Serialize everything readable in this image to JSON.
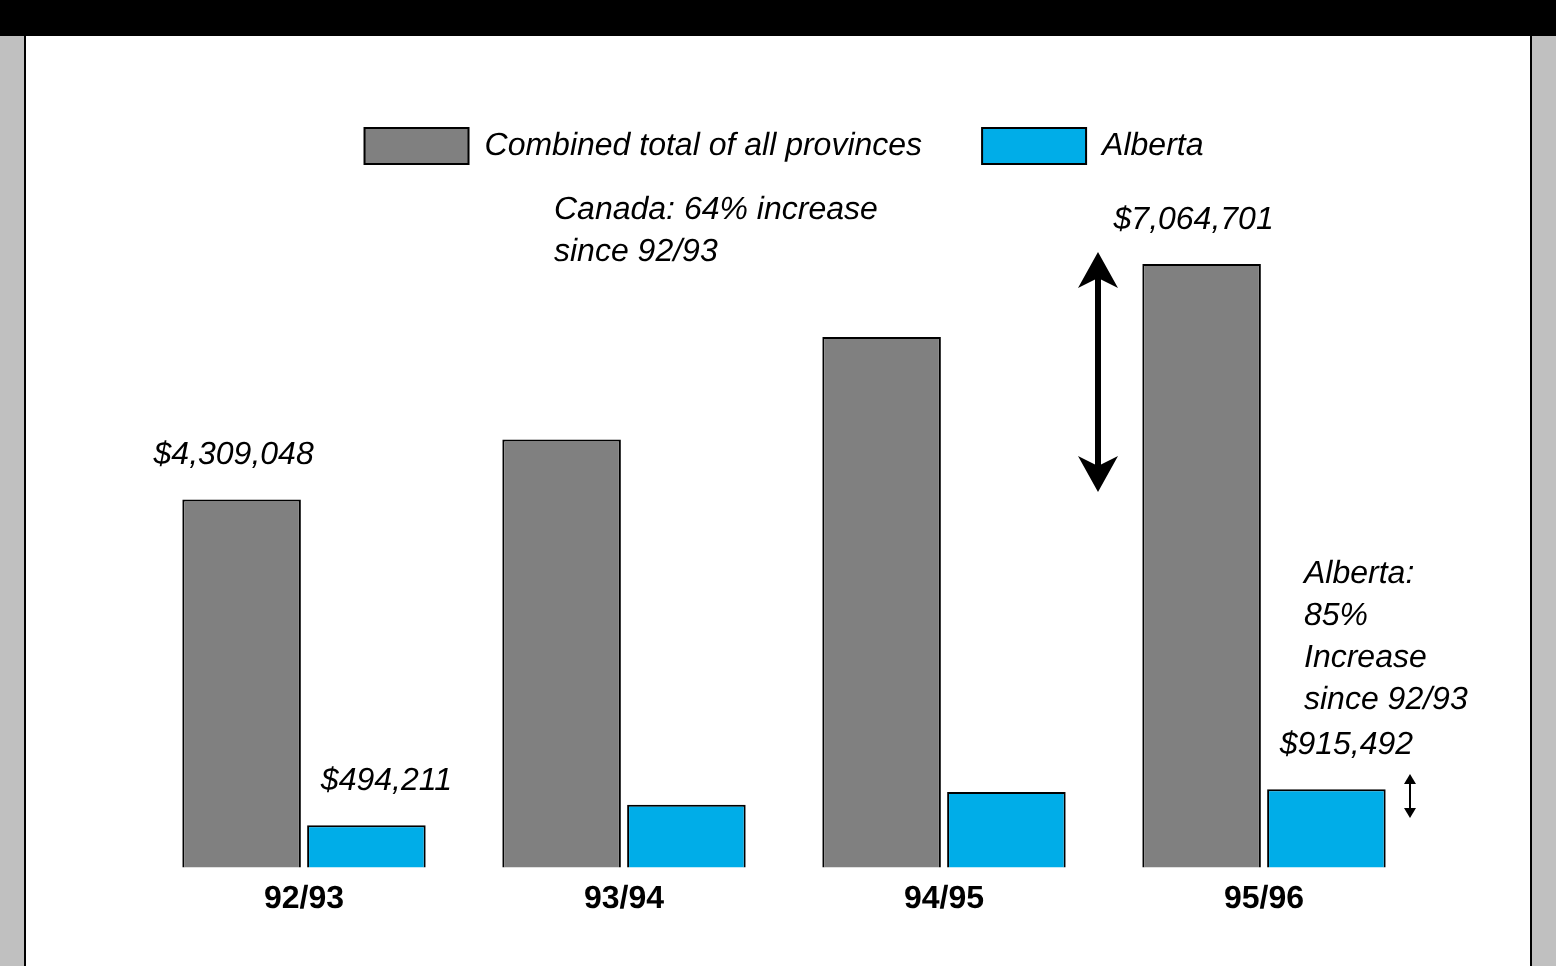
{
  "chart_data": {
    "type": "bar",
    "categories": [
      "92/93",
      "93/94",
      "94/95",
      "95/96"
    ],
    "series": [
      {
        "name": "Combined total of all provinces",
        "color": "#808080",
        "values": [
          4309048,
          5010000,
          6210000,
          7064701
        ],
        "value_labels": [
          "$4,309,048",
          null,
          null,
          "$7,064,701"
        ]
      },
      {
        "name": "Alberta",
        "color": "#00ade8",
        "values": [
          494211,
          736000,
          884000,
          915492
        ],
        "value_labels": [
          "$494,211",
          null,
          null,
          "$915,492"
        ]
      }
    ],
    "tick_labels": "x",
    "legend": "top",
    "annotations": [
      "Canada: 64% increase\nsince 92/93",
      "Alberta:\n85%\nIncrease\nsince 92/93"
    ]
  }
}
